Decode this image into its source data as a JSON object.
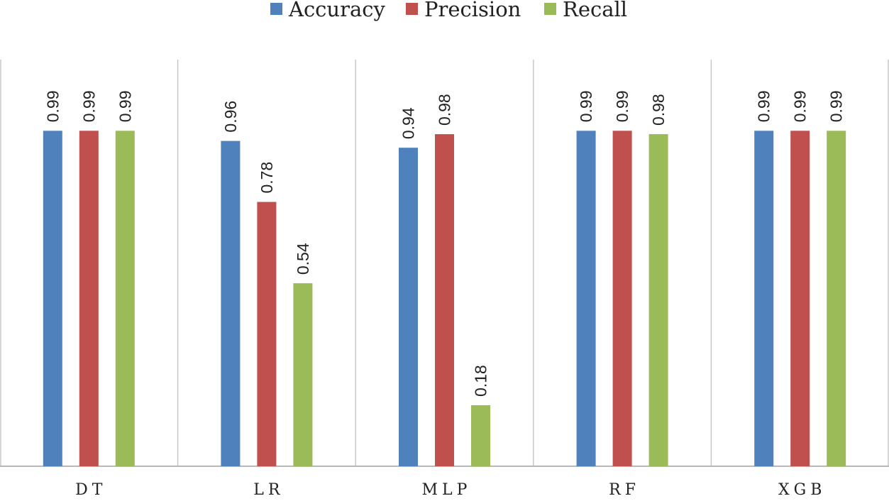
{
  "chart_data": {
    "type": "bar",
    "categories": [
      "DT",
      "LR",
      "MLP",
      "RF",
      "XGB"
    ],
    "series": [
      {
        "name": "Accuracy",
        "color": "#4f81bd",
        "values": [
          0.99,
          0.96,
          0.94,
          0.99,
          0.99
        ]
      },
      {
        "name": "Precision",
        "color": "#c0504d",
        "values": [
          0.99,
          0.78,
          0.98,
          0.99,
          0.99
        ]
      },
      {
        "name": "Recall",
        "color": "#9bbb59",
        "values": [
          0.99,
          0.54,
          0.18,
          0.98,
          0.99
        ]
      }
    ],
    "ylim": [
      0,
      1.2
    ],
    "title": "",
    "xlabel": "",
    "ylabel": "",
    "legend": "top-center",
    "grid": "vertical category separators",
    "value_labels": [
      "0.99",
      "0.99",
      "0.99",
      "0.96",
      "0.78",
      "0.54",
      "0.94",
      "0.98",
      "0.18",
      "0.99",
      "0.99",
      "0.98",
      "0.99",
      "0.99",
      "0.99"
    ]
  }
}
